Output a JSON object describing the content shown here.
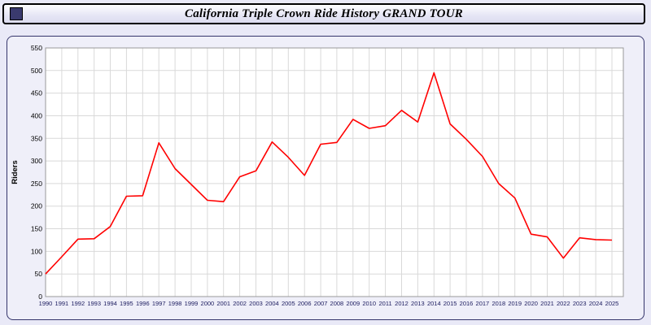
{
  "title_bar": {
    "title": "California Triple Crown Ride History GRAND TOUR",
    "icon": "square-swatch-icon",
    "icon_color": "#3a3a6e"
  },
  "chart_data": {
    "type": "line",
    "title": "California Triple Crown Ride History GRAND TOUR",
    "xlabel": "",
    "ylabel": "Riders",
    "ylim": [
      0,
      550
    ],
    "ytick_step": 50,
    "grid": true,
    "legend_position": "none",
    "plot_bg": "#ffffff",
    "grid_color": "#d9d9d9",
    "frame_color": "#9a9a9a",
    "x_tick_color": "#1a1a5e",
    "y_tick_color": "#000000",
    "x": [
      1990,
      1991,
      1992,
      1993,
      1994,
      1995,
      1996,
      1997,
      1998,
      1999,
      2000,
      2001,
      2002,
      2003,
      2004,
      2005,
      2006,
      2007,
      2008,
      2009,
      2010,
      2011,
      2012,
      2013,
      2014,
      2015,
      2016,
      2017,
      2018,
      2019,
      2020,
      2021,
      2022,
      2023,
      2024,
      2025
    ],
    "series": [
      {
        "name": "Riders",
        "color": "#ff0000",
        "values": [
          50,
          88,
          127,
          128,
          155,
          222,
          223,
          340,
          283,
          248,
          213,
          210,
          265,
          278,
          342,
          308,
          268,
          337,
          341,
          392,
          372,
          378,
          412,
          386,
          495,
          382,
          348,
          310,
          250,
          218,
          138,
          132,
          85,
          130,
          126,
          125
        ]
      }
    ]
  }
}
